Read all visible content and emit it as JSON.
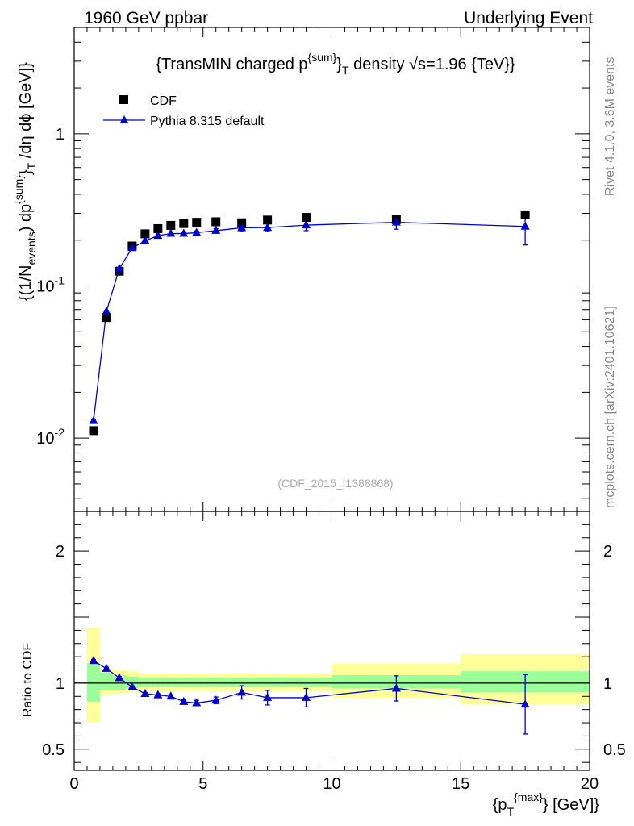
{
  "header": {
    "left": "1960 GeV ppbar",
    "right": "Underlying Event"
  },
  "side_labels": {
    "rivet": "Rivet 4.1.0,  3.6M events",
    "mcplots": "mcplots.cern.ch [arXiv:2401.10621]"
  },
  "colors": {
    "data": "#000000",
    "mc": "#0000cc",
    "band_inner": "#99ff99",
    "band_outer": "#ffff99",
    "side_text": "#888888"
  },
  "chart_data": [
    {
      "type": "scatter",
      "panel": "main",
      "title": "{TransMIN charged p^{sum}_T density √s=1.96 {TeV}}",
      "ylabel": "{(1/N_events) dp^{sum}_T /dη dϕ [GeV]}",
      "yscale": "log",
      "ylim": [
        0.0033,
        5.0
      ],
      "xlim": [
        0,
        20
      ],
      "yticks": [
        {
          "value": 1,
          "label": "1"
        },
        {
          "value": 0.1,
          "label": "10^-1"
        },
        {
          "value": 0.01,
          "label": "10^-2"
        }
      ],
      "analysis_label": "(CDF_2015_I1388868)",
      "legend": [
        {
          "name": "CDF",
          "marker": "square"
        },
        {
          "name": "Pythia 8.315 default",
          "marker": "triangle"
        }
      ],
      "x": [
        0.75,
        1.25,
        1.75,
        2.25,
        2.75,
        3.25,
        3.75,
        4.25,
        4.75,
        5.5,
        6.5,
        7.5,
        9.0,
        12.5,
        17.5
      ],
      "series": [
        {
          "name": "CDF",
          "values": [
            0.0112,
            0.062,
            0.125,
            0.183,
            0.22,
            0.238,
            0.25,
            0.257,
            0.262,
            0.264,
            0.26,
            0.271,
            0.282,
            0.273,
            0.293
          ]
        },
        {
          "name": "Pythia 8.315 default",
          "values": [
            0.013,
            0.068,
            0.13,
            0.178,
            0.198,
            0.214,
            0.221,
            0.221,
            0.224,
            0.231,
            0.241,
            0.242,
            0.251,
            0.262,
            0.246
          ],
          "errors": [
            0.0003,
            0.001,
            0.002,
            0.003,
            0.003,
            0.003,
            0.005,
            0.005,
            0.006,
            0.007,
            0.014,
            0.014,
            0.02,
            0.026,
            0.06
          ]
        }
      ]
    },
    {
      "type": "scatter",
      "panel": "ratio",
      "ylabel": "Ratio to CDF",
      "xlabel": "{p_T^{max}} [GeV]}",
      "ylim": [
        0.34,
        2.3
      ],
      "xlim": [
        0,
        20
      ],
      "yticks": [
        {
          "value": 2,
          "label": "2"
        },
        {
          "value": 1,
          "label": "1"
        },
        {
          "value": 0.5,
          "label": "0.5"
        }
      ],
      "xticks": [
        0,
        5,
        10,
        15,
        20
      ],
      "bins": [
        [
          0.5,
          1.0
        ],
        [
          1.0,
          1.5
        ],
        [
          1.5,
          2.0
        ],
        [
          2.0,
          2.5
        ],
        [
          2.5,
          3.0
        ],
        [
          3.0,
          3.5
        ],
        [
          3.5,
          4.0
        ],
        [
          4.0,
          4.5
        ],
        [
          4.5,
          5.0
        ],
        [
          5.0,
          6.0
        ],
        [
          6.0,
          7.0
        ],
        [
          7.0,
          8.0
        ],
        [
          8.0,
          10.0
        ],
        [
          10.0,
          15.0
        ],
        [
          15.0,
          20.0
        ]
      ],
      "band_inner": [
        [
          0.86,
          1.15
        ],
        [
          0.95,
          1.08
        ],
        [
          0.95,
          1.06
        ],
        [
          0.96,
          1.05
        ],
        [
          0.97,
          1.04
        ],
        [
          0.97,
          1.04
        ],
        [
          0.97,
          1.04
        ],
        [
          0.97,
          1.04
        ],
        [
          0.97,
          1.04
        ],
        [
          0.97,
          1.04
        ],
        [
          0.97,
          1.04
        ],
        [
          0.97,
          1.04
        ],
        [
          0.97,
          1.04
        ],
        [
          0.96,
          1.06
        ],
        [
          0.93,
          1.09
        ]
      ],
      "band_outer": [
        [
          0.7,
          1.42
        ],
        [
          0.91,
          1.12
        ],
        [
          0.92,
          1.1
        ],
        [
          0.93,
          1.09
        ],
        [
          0.94,
          1.07
        ],
        [
          0.94,
          1.07
        ],
        [
          0.94,
          1.07
        ],
        [
          0.94,
          1.07
        ],
        [
          0.94,
          1.07
        ],
        [
          0.94,
          1.07
        ],
        [
          0.94,
          1.07
        ],
        [
          0.94,
          1.07
        ],
        [
          0.94,
          1.07
        ],
        [
          0.89,
          1.15
        ],
        [
          0.84,
          1.22
        ]
      ],
      "x": [
        0.75,
        1.25,
        1.75,
        2.25,
        2.75,
        3.25,
        3.75,
        4.25,
        4.75,
        5.5,
        6.5,
        7.5,
        9.0,
        12.5,
        17.5
      ],
      "series": [
        {
          "name": "Pythia 8.315 default",
          "values": [
            1.17,
            1.11,
            1.04,
            0.97,
            0.92,
            0.91,
            0.9,
            0.86,
            0.85,
            0.87,
            0.93,
            0.89,
            0.89,
            0.96,
            0.84
          ],
          "errors": [
            0.01,
            0.01,
            0.01,
            0.01,
            0.01,
            0.01,
            0.01,
            0.015,
            0.02,
            0.025,
            0.05,
            0.055,
            0.07,
            0.095,
            0.225
          ]
        }
      ]
    }
  ]
}
